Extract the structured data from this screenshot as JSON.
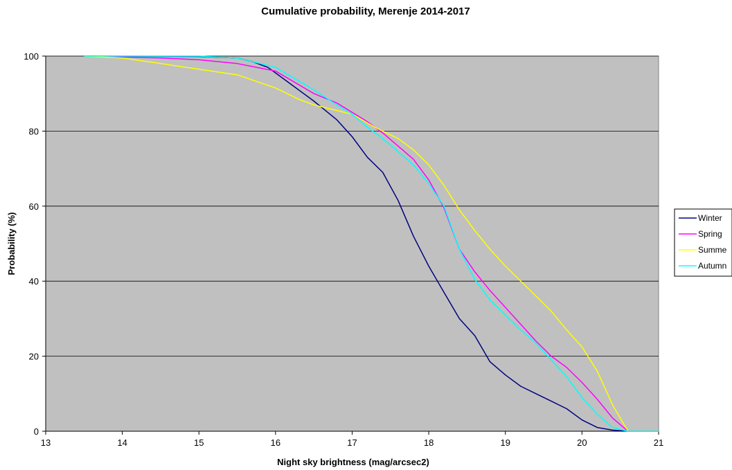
{
  "chart_data": {
    "type": "line",
    "title": "Cumulative probability, Merenje 2014-2017",
    "xlabel": "Night sky brightness (mag/arcsec2)",
    "ylabel": "Probability (%)",
    "xlim": [
      13,
      21
    ],
    "ylim": [
      0,
      100
    ],
    "x_ticks": [
      "13",
      "14",
      "15",
      "16",
      "17",
      "18",
      "19",
      "20",
      "21"
    ],
    "y_ticks": [
      "0",
      "20",
      "40",
      "60",
      "80",
      "100"
    ],
    "grid": "horizontal",
    "plot_background": "#C0C0C0",
    "legend_position": "right",
    "legend_labels": [
      "Winter",
      "Spring",
      "Summe",
      "Autumn"
    ],
    "series": [
      {
        "name": "Winter",
        "color": "#000080",
        "x": [
          13.5,
          15.0,
          15.5,
          15.7,
          15.9,
          16.0,
          16.2,
          16.5,
          16.8,
          17.0,
          17.2,
          17.4,
          17.6,
          17.8,
          18.0,
          18.2,
          18.4,
          18.6,
          18.8,
          19.0,
          19.2,
          19.4,
          19.6,
          19.8,
          20.0,
          20.2,
          20.4,
          20.6,
          21.0
        ],
        "y": [
          100,
          99.9,
          99.5,
          98.5,
          97,
          95.5,
          92.5,
          88,
          83,
          78.5,
          73,
          69,
          61.5,
          52,
          44,
          37,
          30,
          25.5,
          18.5,
          15,
          12,
          10,
          8,
          6,
          3,
          1,
          0.3,
          0,
          0
        ]
      },
      {
        "name": "Spring",
        "color": "#FF00FF",
        "x": [
          13.5,
          14.5,
          15.0,
          15.5,
          16.0,
          16.5,
          16.8,
          17.0,
          17.2,
          17.4,
          17.6,
          17.8,
          18.0,
          18.2,
          18.4,
          18.6,
          18.8,
          19.0,
          19.2,
          19.4,
          19.6,
          19.8,
          20.0,
          20.2,
          20.4,
          20.6,
          21.0
        ],
        "y": [
          100,
          99.5,
          99,
          98,
          96,
          90,
          87.5,
          85,
          82.5,
          79.5,
          76,
          72.5,
          67,
          59.5,
          48.5,
          42.5,
          37.5,
          33,
          28.5,
          24,
          20,
          17,
          13,
          8.5,
          3.5,
          0,
          0
        ]
      },
      {
        "name": "Summe",
        "color": "#FFFF00",
        "x": [
          13.5,
          14.0,
          14.5,
          15.0,
          15.5,
          16.0,
          16.3,
          16.5,
          17.0,
          17.3,
          17.6,
          17.8,
          18.0,
          18.2,
          18.4,
          18.6,
          18.8,
          19.0,
          19.2,
          19.4,
          19.6,
          19.8,
          20.0,
          20.2,
          20.4,
          20.6,
          21.0
        ],
        "y": [
          100,
          99.5,
          98,
          96.5,
          95,
          91.5,
          88.5,
          87,
          84.5,
          81,
          78,
          75,
          71,
          65.5,
          59,
          53.5,
          48.5,
          44,
          40,
          36,
          32,
          27,
          22.5,
          16,
          7,
          0,
          0
        ]
      },
      {
        "name": "Autumn",
        "color": "#00FFFF",
        "x": [
          13.5,
          15.0,
          15.5,
          16.0,
          16.5,
          16.8,
          17.0,
          17.2,
          17.4,
          17.6,
          17.8,
          18.0,
          18.2,
          18.4,
          18.6,
          18.8,
          19.0,
          19.2,
          19.4,
          19.6,
          19.8,
          20.0,
          20.2,
          20.4,
          20.6,
          21.0
        ],
        "y": [
          100,
          100,
          99.5,
          97,
          91,
          87,
          84.5,
          81,
          78,
          74.5,
          71,
          66,
          60,
          48.5,
          40.5,
          35,
          31,
          27,
          23.5,
          19,
          14.5,
          9,
          4.5,
          1,
          0,
          0
        ]
      }
    ]
  }
}
